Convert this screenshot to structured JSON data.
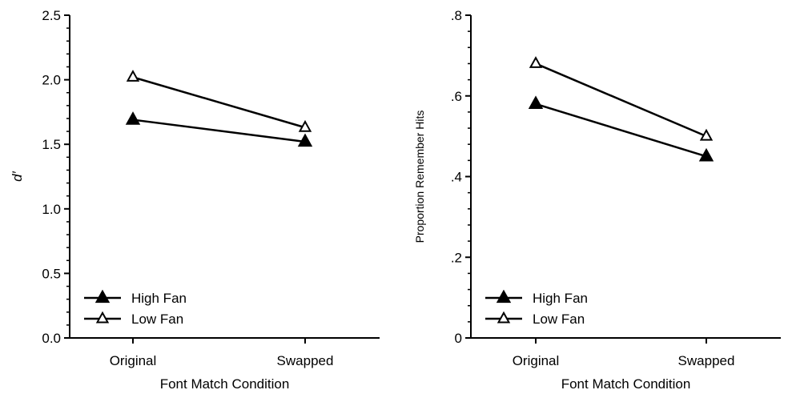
{
  "chart_data": [
    {
      "type": "line",
      "categories": [
        "Original",
        "Swapped"
      ],
      "xlabel": "Font Match Condition",
      "ylabel": "d′",
      "ylim": [
        0,
        2.5
      ],
      "yticks": [
        0,
        0.5,
        1.0,
        1.5,
        2.0,
        2.5
      ],
      "ytick_labels": [
        "0.0",
        "0.5",
        "1.0",
        "1.5",
        "2.0",
        "2.5"
      ],
      "grid": false,
      "legend_position": "bottom-left",
      "series": [
        {
          "name": "High Fan",
          "marker": "filled-triangle",
          "values": [
            1.69,
            1.52
          ]
        },
        {
          "name": "Low Fan",
          "marker": "open-triangle",
          "values": [
            2.02,
            1.63
          ]
        }
      ]
    },
    {
      "type": "line",
      "categories": [
        "Original",
        "Swapped"
      ],
      "xlabel": "Font Match Condition",
      "ylabel": "Proportion Remember Hits",
      "ylim": [
        0,
        0.8
      ],
      "yticks": [
        0,
        0.2,
        0.4,
        0.6,
        0.8
      ],
      "ytick_labels": [
        "0",
        ".2",
        ".4",
        ".6",
        ".8"
      ],
      "grid": false,
      "legend_position": "bottom-left",
      "series": [
        {
          "name": "High Fan",
          "marker": "filled-triangle",
          "values": [
            0.58,
            0.45
          ]
        },
        {
          "name": "Low Fan",
          "marker": "open-triangle",
          "values": [
            0.68,
            0.5
          ]
        }
      ]
    }
  ]
}
